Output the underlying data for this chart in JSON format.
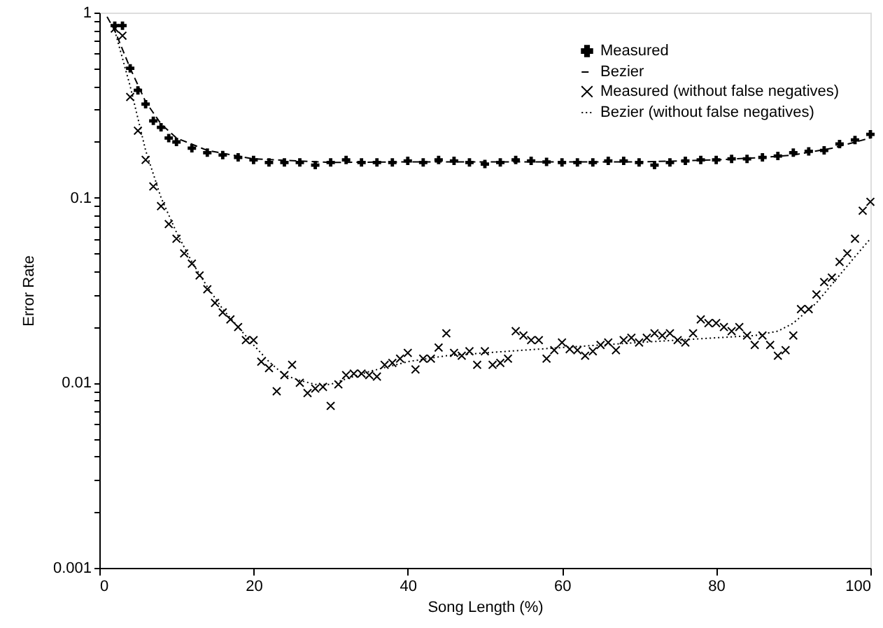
{
  "chart_data": {
    "type": "line",
    "xlabel": "Song Length (%)",
    "ylabel": "Error Rate",
    "log": "y",
    "xlim": [
      0,
      100
    ],
    "ylim": [
      0.001,
      1
    ],
    "xticks": [
      0,
      20,
      40,
      60,
      80,
      100
    ],
    "yticks": [
      0.001,
      {
        "value": 0.002,
        "label": null
      },
      {
        "value": 0.003,
        "label": null
      },
      {
        "value": 0.004,
        "label": null
      },
      {
        "value": 0.005,
        "label": null
      },
      {
        "value": 0.006,
        "label": null
      },
      {
        "value": 0.007,
        "label": null
      },
      {
        "value": 0.008,
        "label": null
      },
      {
        "value": 0.009,
        "label": null
      },
      0.01,
      {
        "value": 0.02,
        "label": null
      },
      {
        "value": 0.03,
        "label": null
      },
      {
        "value": 0.04,
        "label": null
      },
      {
        "value": 0.05,
        "label": null
      },
      {
        "value": 0.06,
        "label": null
      },
      {
        "value": 0.07,
        "label": null
      },
      {
        "value": 0.08,
        "label": null
      },
      {
        "value": 0.09,
        "label": null
      },
      0.1,
      {
        "value": 0.2,
        "label": null
      },
      {
        "value": 0.3,
        "label": null
      },
      {
        "value": 0.4,
        "label": null
      },
      {
        "value": 0.5,
        "label": null
      },
      {
        "value": 0.6,
        "label": null
      },
      {
        "value": 0.7,
        "label": null
      },
      {
        "value": 0.8,
        "label": null
      },
      {
        "value": 0.9,
        "label": null
      },
      1
    ],
    "grid": false,
    "legend": "top right",
    "series": [
      {
        "name": "Measured",
        "type": "scatter",
        "marker": "cross",
        "color": "#000000",
        "x": [
          2,
          3,
          4,
          5,
          6,
          7,
          8,
          9,
          10,
          12,
          14,
          16,
          18,
          20,
          22,
          24,
          26,
          28,
          30,
          32,
          34,
          36,
          38,
          40,
          42,
          44,
          46,
          48,
          50,
          52,
          54,
          56,
          58,
          60,
          62,
          64,
          66,
          68,
          70,
          72,
          74,
          76,
          78,
          80,
          82,
          84,
          86,
          88,
          90,
          92,
          94,
          96,
          98,
          100
        ],
        "values": [
          0.85,
          0.85,
          0.5,
          0.38,
          0.32,
          0.26,
          0.24,
          0.21,
          0.2,
          0.185,
          0.175,
          0.17,
          0.165,
          0.16,
          0.155,
          0.155,
          0.155,
          0.15,
          0.155,
          0.16,
          0.155,
          0.155,
          0.155,
          0.158,
          0.155,
          0.16,
          0.158,
          0.155,
          0.152,
          0.155,
          0.16,
          0.158,
          0.156,
          0.155,
          0.155,
          0.155,
          0.158,
          0.158,
          0.155,
          0.15,
          0.155,
          0.158,
          0.16,
          0.16,
          0.162,
          0.162,
          0.165,
          0.168,
          0.175,
          0.178,
          0.18,
          0.195,
          0.205,
          0.22
        ]
      },
      {
        "name": "Bezier",
        "line_style": "dashed",
        "color": "#000000",
        "x": [
          1,
          2,
          4,
          6,
          8,
          10,
          14,
          20,
          30,
          40,
          50,
          60,
          70,
          80,
          86,
          90,
          95,
          100
        ],
        "values": [
          0.95,
          0.8,
          0.5,
          0.33,
          0.25,
          0.21,
          0.18,
          0.162,
          0.155,
          0.156,
          0.156,
          0.156,
          0.156,
          0.16,
          0.165,
          0.17,
          0.185,
          0.21
        ]
      },
      {
        "name": "Measured (without false negatives)",
        "type": "scatter",
        "marker": "cross",
        "color": "#000000",
        "x": [
          2,
          3,
          4,
          5,
          6,
          7,
          8,
          9,
          10,
          11,
          12,
          13,
          14,
          15,
          16,
          17,
          18,
          19,
          20,
          21,
          22,
          23,
          24,
          25,
          26,
          27,
          28,
          29,
          30,
          31,
          32,
          33,
          34,
          35,
          36,
          37,
          38,
          39,
          40,
          41,
          42,
          43,
          44,
          45,
          46,
          47,
          48,
          49,
          50,
          51,
          52,
          53,
          54,
          55,
          56,
          57,
          58,
          59,
          60,
          61,
          62,
          63,
          64,
          65,
          66,
          67,
          68,
          69,
          70,
          71,
          72,
          73,
          74,
          75,
          76,
          77,
          78,
          79,
          80,
          81,
          82,
          83,
          84,
          85,
          86,
          87,
          88,
          89,
          90,
          91,
          92,
          93,
          94,
          95,
          96,
          97,
          98,
          99,
          100
        ],
        "values": [
          0.82,
          0.75,
          0.35,
          0.23,
          0.16,
          0.115,
          0.09,
          0.072,
          0.06,
          0.05,
          0.044,
          0.038,
          0.032,
          0.027,
          0.024,
          0.022,
          0.02,
          0.017,
          0.017,
          0.013,
          0.012,
          0.009,
          0.011,
          0.0125,
          0.01,
          0.0088,
          0.0093,
          0.0095,
          0.0075,
          0.0098,
          0.011,
          0.0112,
          0.0112,
          0.011,
          0.0108,
          0.0125,
          0.0128,
          0.0135,
          0.0145,
          0.0118,
          0.0135,
          0.0135,
          0.0155,
          0.0185,
          0.0145,
          0.014,
          0.0148,
          0.0125,
          0.0148,
          0.0125,
          0.0128,
          0.0135,
          0.019,
          0.018,
          0.017,
          0.017,
          0.0135,
          0.015,
          0.0165,
          0.0152,
          0.015,
          0.014,
          0.0148,
          0.016,
          0.0165,
          0.015,
          0.017,
          0.0175,
          0.0165,
          0.0175,
          0.0185,
          0.018,
          0.0185,
          0.017,
          0.0165,
          0.0185,
          0.022,
          0.021,
          0.021,
          0.02,
          0.019,
          0.02,
          0.018,
          0.016,
          0.018,
          0.016,
          0.014,
          0.015,
          0.018,
          0.025,
          0.025,
          0.03,
          0.035,
          0.037,
          0.045,
          0.05,
          0.06,
          0.085,
          0.095
        ]
      },
      {
        "name": "Bezier (without false negatives)",
        "line_style": "dotted",
        "color": "#000000",
        "x": [
          2,
          4,
          6,
          8,
          10,
          12,
          14,
          16,
          18,
          20,
          22,
          24,
          26,
          28,
          30,
          32,
          35,
          40,
          45,
          50,
          55,
          60,
          65,
          70,
          75,
          80,
          85,
          88,
          90,
          93,
          95,
          98,
          100
        ],
        "values": [
          0.8,
          0.4,
          0.18,
          0.1,
          0.065,
          0.045,
          0.033,
          0.025,
          0.02,
          0.016,
          0.013,
          0.011,
          0.0103,
          0.0098,
          0.0098,
          0.0105,
          0.0115,
          0.013,
          0.014,
          0.0145,
          0.015,
          0.0155,
          0.016,
          0.0165,
          0.017,
          0.0175,
          0.018,
          0.019,
          0.021,
          0.027,
          0.034,
          0.048,
          0.06
        ]
      }
    ]
  }
}
